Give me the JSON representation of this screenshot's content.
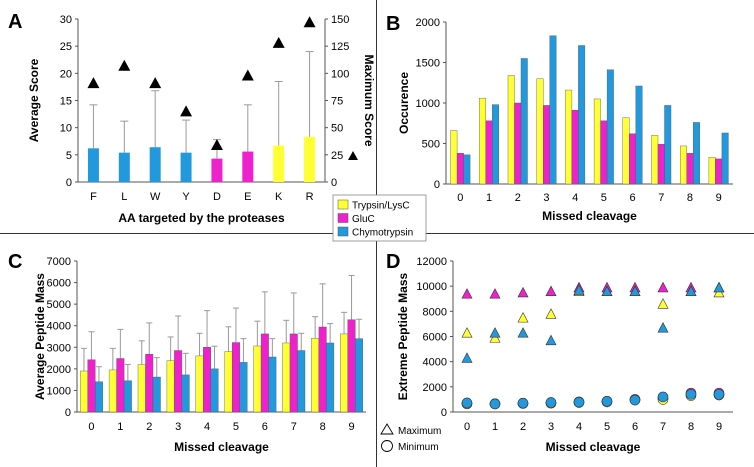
{
  "colors": {
    "trypsin": "#FFFF33",
    "gluc": "#EE22CC",
    "chymo": "#2299DD",
    "line": "#000000",
    "err": "#999999"
  },
  "legend": {
    "entries": [
      {
        "name": "Trypsin/LysC",
        "color_key": "trypsin"
      },
      {
        "name": "GluC",
        "color_key": "gluc"
      },
      {
        "name": "Chymotrypsin",
        "color_key": "chymo"
      }
    ]
  },
  "chart_data": [
    {
      "panel": "A",
      "type": "bar",
      "xlabel": "AA targeted by the proteases",
      "ylabel": "Average Score",
      "y2label": "Maximum Score",
      "categories": [
        "F",
        "L",
        "W",
        "Y",
        "D",
        "E",
        "K",
        "R"
      ],
      "bar_colors": [
        "chymo",
        "chymo",
        "chymo",
        "chymo",
        "gluc",
        "gluc",
        "trypsin",
        "trypsin"
      ],
      "avg_score": [
        6.2,
        5.4,
        6.4,
        5.4,
        4.3,
        5.6,
        6.7,
        8.3
      ],
      "error": [
        8.0,
        5.8,
        10.4,
        6.0,
        3.5,
        8.6,
        11.8,
        15.7
      ],
      "max_score": [
        91,
        107,
        91,
        65,
        34,
        98,
        128,
        147
      ],
      "ylim": [
        0,
        30
      ],
      "yticks": [
        "0",
        "5",
        "10",
        "15",
        "20",
        "25",
        "30"
      ],
      "y2lim": [
        0,
        150
      ],
      "y2ticks": [
        "0",
        "25",
        "50",
        "75",
        "100",
        "125",
        "150"
      ]
    },
    {
      "panel": "B",
      "type": "bar",
      "xlabel": "Missed cleavage",
      "ylabel": "Occurence",
      "categories": [
        "0",
        "1",
        "2",
        "3",
        "4",
        "5",
        "6",
        "7",
        "8",
        "9"
      ],
      "ylim": [
        0,
        2000
      ],
      "yticks": [
        "0",
        "500",
        "1000",
        "1500",
        "2000"
      ],
      "series": [
        {
          "name": "Trypsin/LysC",
          "color_key": "trypsin",
          "values": [
            660,
            1060,
            1340,
            1300,
            1160,
            1050,
            820,
            600,
            470,
            330
          ]
        },
        {
          "name": "GluC",
          "color_key": "gluc",
          "values": [
            380,
            780,
            1000,
            970,
            910,
            780,
            620,
            490,
            380,
            310
          ]
        },
        {
          "name": "Chymotrypsin",
          "color_key": "chymo",
          "values": [
            360,
            980,
            1550,
            1830,
            1710,
            1410,
            1210,
            970,
            760,
            630
          ]
        }
      ]
    },
    {
      "panel": "C",
      "type": "bar",
      "xlabel": "Missed cleavage",
      "ylabel": "Average Peptide Mass",
      "categories": [
        "0",
        "1",
        "2",
        "3",
        "4",
        "5",
        "6",
        "7",
        "8",
        "9"
      ],
      "ylim": [
        0,
        7000
      ],
      "yticks": [
        "0",
        "1000",
        "2000",
        "3000",
        "4000",
        "5000",
        "6000",
        "7000"
      ],
      "series": [
        {
          "name": "Trypsin/LysC",
          "color_key": "trypsin",
          "values": [
            1900,
            1950,
            2200,
            2380,
            2600,
            2800,
            3060,
            3200,
            3420,
            3620
          ],
          "error": [
            1050,
            1000,
            1100,
            1100,
            1050,
            1150,
            1150,
            1050,
            1000,
            1000
          ]
        },
        {
          "name": "GluC",
          "color_key": "gluc",
          "values": [
            2420,
            2480,
            2680,
            2850,
            3000,
            3220,
            3620,
            3620,
            3940,
            4280
          ],
          "error": [
            1300,
            1350,
            1450,
            1600,
            1700,
            1600,
            1950,
            1900,
            2000,
            2050
          ]
        },
        {
          "name": "Chymotrypsin",
          "color_key": "chymo",
          "values": [
            1400,
            1450,
            1620,
            1720,
            2000,
            2300,
            2550,
            2850,
            3200,
            3400
          ],
          "error": [
            700,
            750,
            900,
            1000,
            1050,
            1100,
            850,
            800,
            900,
            900
          ]
        }
      ]
    },
    {
      "panel": "D",
      "type": "scatter",
      "xlabel": "Missed cleavage",
      "ylabel": "Extreme Peptide Mass",
      "categories": [
        "0",
        "1",
        "2",
        "3",
        "4",
        "5",
        "6",
        "7",
        "8",
        "9"
      ],
      "ylim": [
        0,
        12000
      ],
      "yticks": [
        "0",
        "2000",
        "4000",
        "6000",
        "8000",
        "10000",
        "12000"
      ],
      "marker_legend": [
        {
          "label": "Maximum",
          "marker": "triangle"
        },
        {
          "label": "Minimum",
          "marker": "circle"
        }
      ],
      "series": [
        {
          "name": "GluC",
          "color_key": "gluc",
          "marker": "triangle",
          "values": [
            9400,
            9400,
            9500,
            9600,
            9900,
            9900,
            9900,
            9900,
            9900,
            9900
          ]
        },
        {
          "name": "Trypsin/LysC",
          "color_key": "trypsin",
          "marker": "triangle",
          "values": [
            6300,
            5900,
            7500,
            7800,
            9600,
            9600,
            9600,
            8600,
            9600,
            9500
          ]
        },
        {
          "name": "Chymotrypsin",
          "color_key": "chymo",
          "marker": "triangle",
          "values": [
            4300,
            6300,
            6300,
            5700,
            9700,
            9600,
            9600,
            6700,
            9600,
            9900
          ]
        },
        {
          "name": "GluC",
          "color_key": "gluc",
          "marker": "circle",
          "values": [
            700,
            650,
            700,
            750,
            800,
            850,
            1000,
            1100,
            1500,
            1500
          ]
        },
        {
          "name": "Trypsin/LysC",
          "color_key": "trypsin",
          "marker": "circle",
          "values": [
            650,
            650,
            680,
            700,
            750,
            800,
            950,
            1000,
            1300,
            1350
          ]
        },
        {
          "name": "Chymotrypsin",
          "color_key": "chymo",
          "marker": "circle",
          "values": [
            720,
            640,
            700,
            750,
            780,
            850,
            950,
            1200,
            1400,
            1400
          ]
        }
      ]
    }
  ]
}
